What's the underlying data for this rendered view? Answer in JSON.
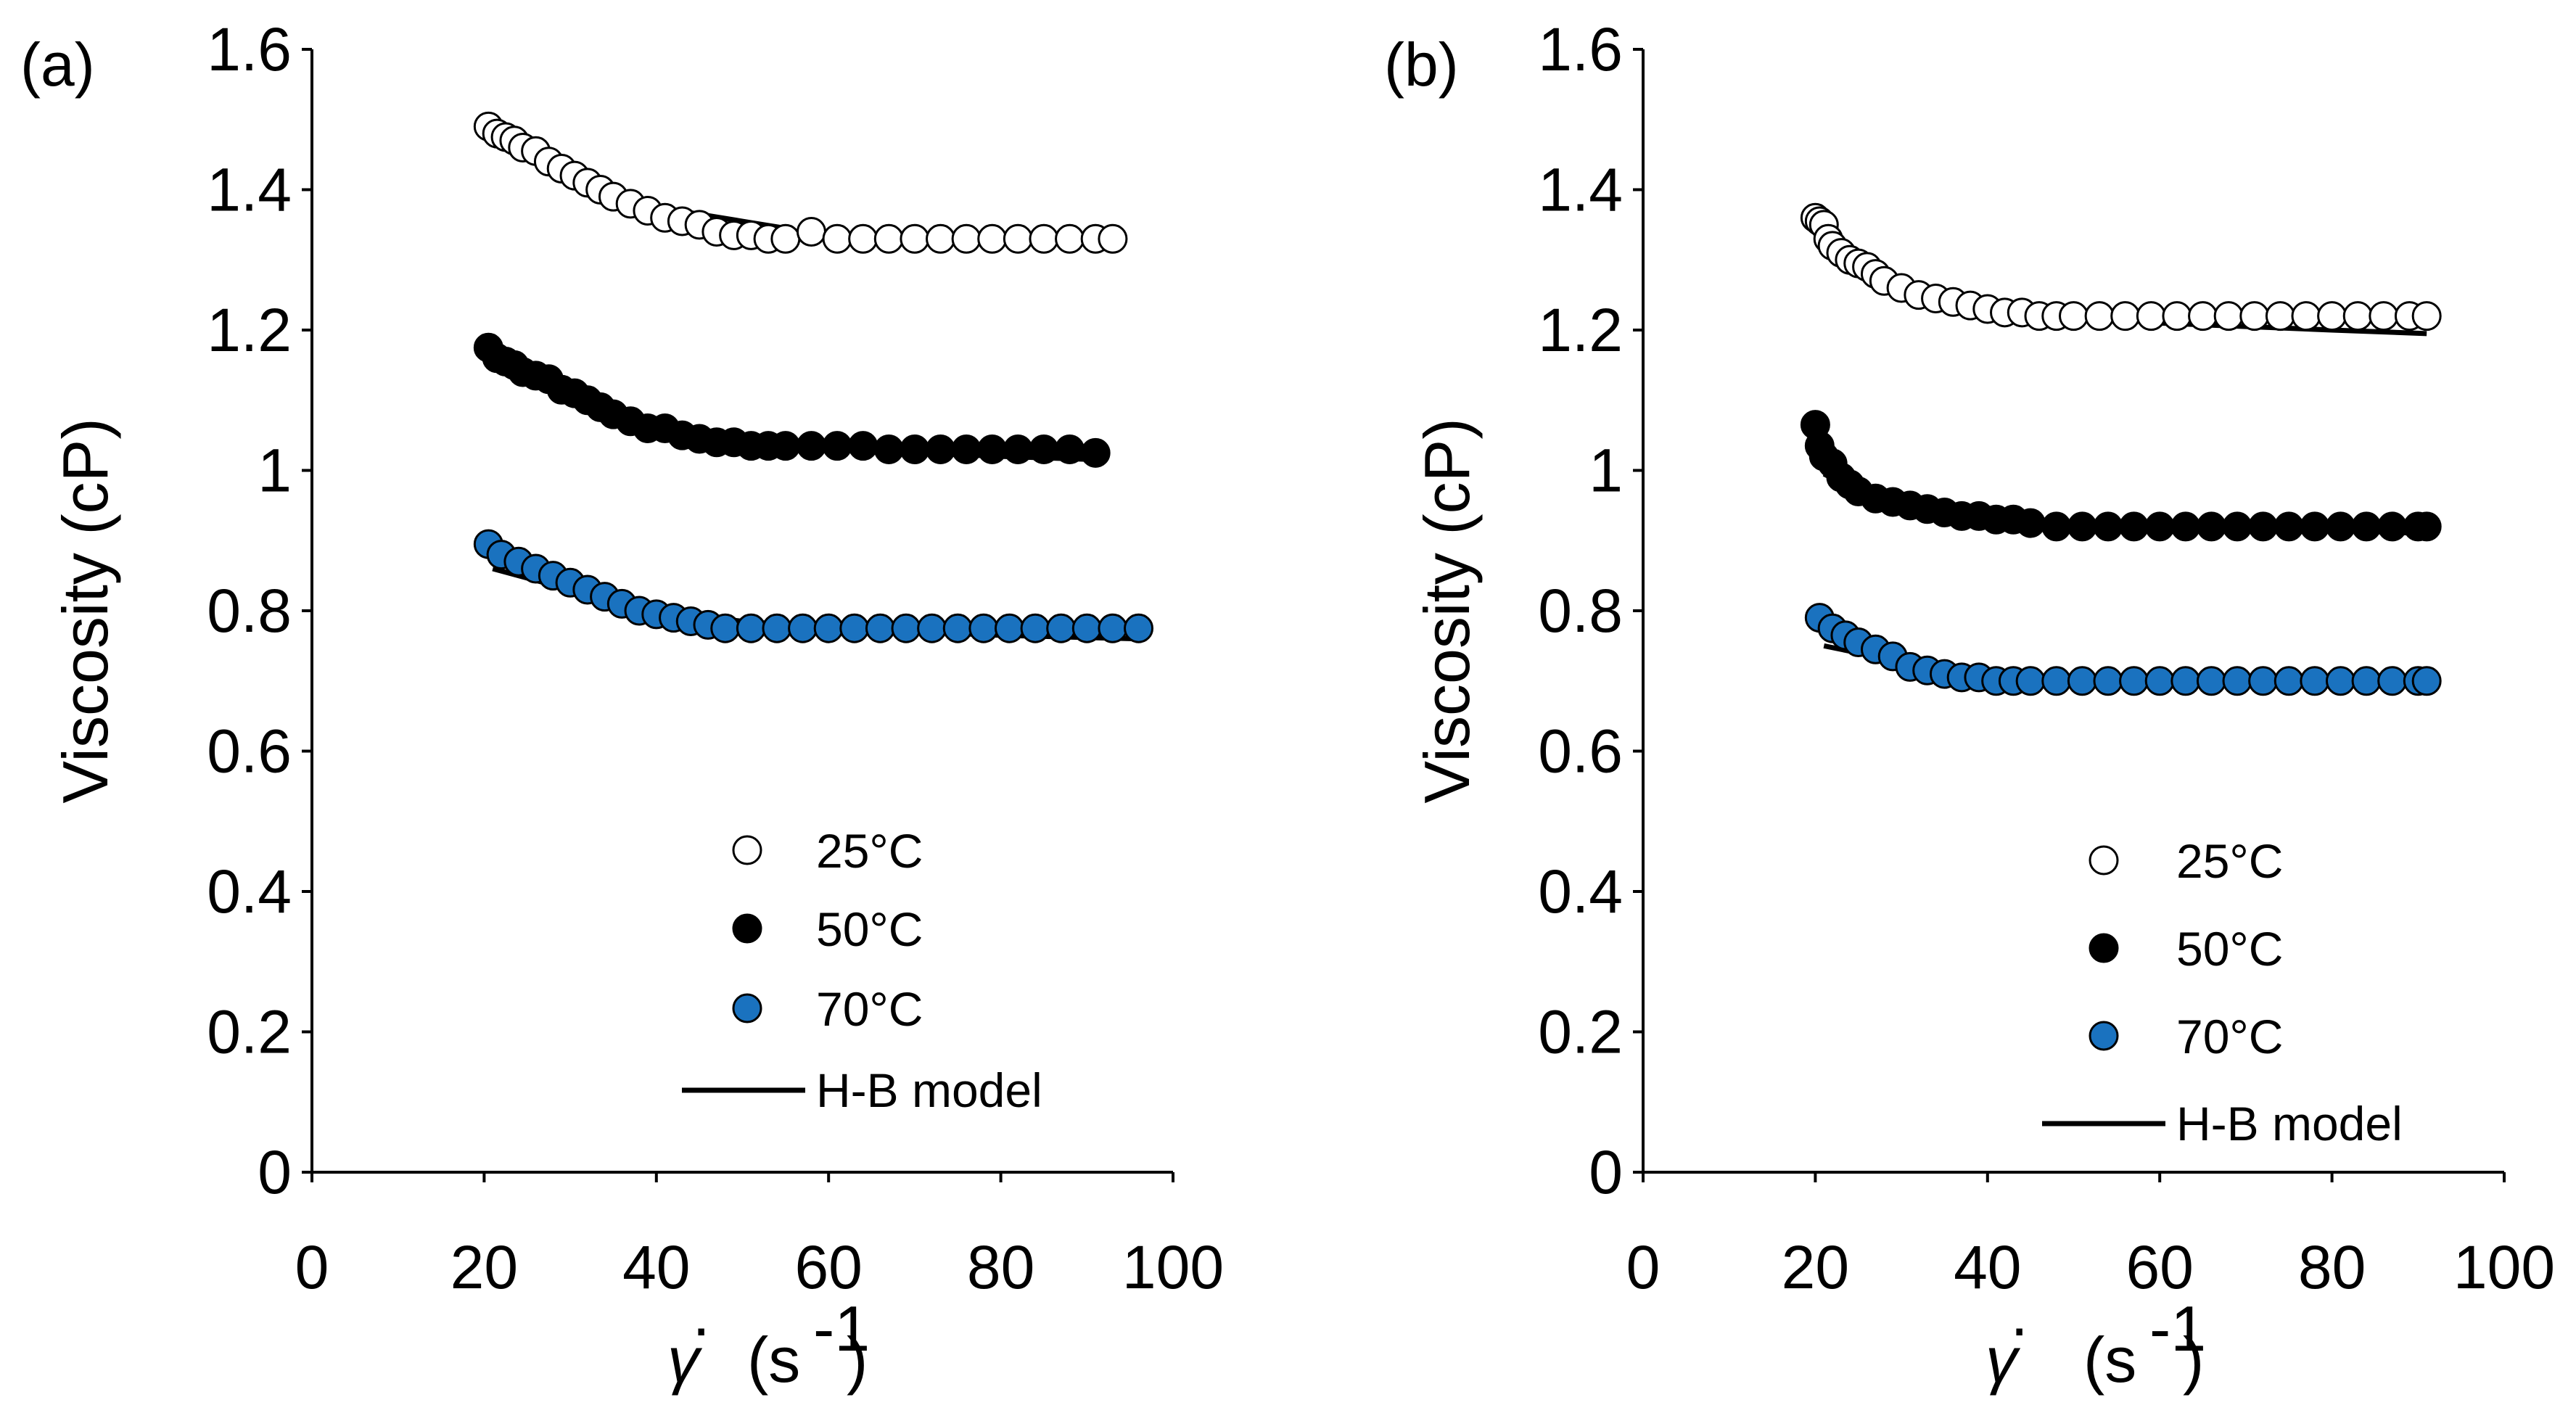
{
  "chart_data": [
    {
      "type": "scatter",
      "panel_label": "(a)",
      "ylabel": "Viscosity (cP)",
      "xlabel": {
        "symbol": "γ",
        "overdot": "·",
        "unit_open": "(s",
        "unit_exp": "-1",
        "unit_close": ")"
      },
      "xlim": [
        0,
        100
      ],
      "ylim": [
        0,
        1.6
      ],
      "xticks": [
        0,
        20,
        40,
        60,
        80,
        100
      ],
      "yticks": [
        0,
        0.2,
        0.4,
        0.6,
        0.8,
        1,
        1.2,
        1.4,
        1.6
      ],
      "ytick_labels": [
        "0",
        "0.2",
        "0.4",
        "0.6",
        "0.8",
        "1",
        "1.2",
        "1.4",
        "1.6"
      ],
      "legend": [
        {
          "label": "25°C",
          "marker": "circle",
          "fill": "#ffffff"
        },
        {
          "label": "50°C",
          "marker": "circle",
          "fill": "#000000"
        },
        {
          "label": "70°C",
          "marker": "circle",
          "fill": "#1a72bf"
        },
        {
          "label": "H-B model",
          "marker": "line",
          "fill": "#000000"
        }
      ],
      "series": [
        {
          "name": "25°C",
          "fill": "#ffffff",
          "x": [
            20.5,
            21.5,
            22.5,
            23.5,
            24.5,
            26,
            27.5,
            29,
            30.5,
            32,
            33.5,
            35,
            37,
            39,
            41,
            43,
            45,
            47,
            49,
            51,
            53,
            55,
            58,
            61,
            64,
            67,
            70,
            73,
            76,
            79,
            82,
            85,
            88,
            91,
            93
          ],
          "y": [
            1.49,
            1.48,
            1.475,
            1.47,
            1.46,
            1.455,
            1.44,
            1.43,
            1.42,
            1.41,
            1.4,
            1.39,
            1.38,
            1.37,
            1.36,
            1.355,
            1.35,
            1.34,
            1.335,
            1.335,
            1.33,
            1.33,
            1.34,
            1.33,
            1.33,
            1.33,
            1.33,
            1.33,
            1.33,
            1.33,
            1.33,
            1.33,
            1.33,
            1.33,
            1.33
          ]
        },
        {
          "name": "50°C",
          "fill": "#000000",
          "x": [
            20.5,
            21.5,
            22.5,
            23.5,
            24.5,
            26,
            27.5,
            29,
            30.5,
            32,
            33.5,
            35,
            37,
            39,
            41,
            43,
            45,
            47,
            49,
            51,
            53,
            55,
            58,
            61,
            64,
            67,
            70,
            73,
            76,
            79,
            82,
            85,
            88,
            91
          ],
          "y": [
            1.175,
            1.16,
            1.155,
            1.15,
            1.14,
            1.135,
            1.13,
            1.115,
            1.11,
            1.1,
            1.09,
            1.08,
            1.07,
            1.06,
            1.06,
            1.05,
            1.045,
            1.04,
            1.04,
            1.035,
            1.035,
            1.035,
            1.035,
            1.035,
            1.035,
            1.03,
            1.03,
            1.03,
            1.03,
            1.03,
            1.03,
            1.03,
            1.03,
            1.025
          ]
        },
        {
          "name": "70°C",
          "fill": "#1a72bf",
          "x": [
            20.5,
            22,
            24,
            26,
            28,
            30,
            32,
            34,
            36,
            38,
            40,
            42,
            44,
            46,
            48,
            51,
            54,
            57,
            60,
            63,
            66,
            69,
            72,
            75,
            78,
            81,
            84,
            87,
            90,
            93,
            96
          ],
          "y": [
            0.895,
            0.88,
            0.87,
            0.86,
            0.85,
            0.84,
            0.83,
            0.82,
            0.81,
            0.8,
            0.795,
            0.79,
            0.785,
            0.78,
            0.775,
            0.775,
            0.775,
            0.775,
            0.775,
            0.775,
            0.775,
            0.775,
            0.775,
            0.775,
            0.775,
            0.775,
            0.775,
            0.775,
            0.775,
            0.775,
            0.775
          ]
        }
      ],
      "model_lines": [
        {
          "name": "H-B model 25°C",
          "x": [
            21,
            25,
            30,
            35,
            40,
            45,
            50,
            55
          ],
          "y": [
            1.47,
            1.445,
            1.415,
            1.39,
            1.375,
            1.365,
            1.355,
            1.345
          ]
        },
        {
          "name": "H-B model 50°C",
          "x": [
            21,
            30,
            40,
            50,
            60,
            70,
            80,
            92
          ],
          "y": [
            1.155,
            1.105,
            1.065,
            1.04,
            1.03,
            1.025,
            1.02,
            1.015
          ]
        },
        {
          "name": "H-B model 70°C",
          "x": [
            21,
            30,
            40,
            50,
            60,
            70,
            80,
            96
          ],
          "y": [
            0.86,
            0.83,
            0.8,
            0.785,
            0.775,
            0.77,
            0.765,
            0.76
          ]
        }
      ]
    },
    {
      "type": "scatter",
      "panel_label": "(b)",
      "ylabel": "Viscosity (cP)",
      "xlabel": {
        "symbol": "γ",
        "overdot": "·",
        "unit_open": "(s",
        "unit_exp": "-1",
        "unit_close": ")"
      },
      "xlim": [
        0,
        100
      ],
      "ylim": [
        0,
        1.6
      ],
      "xticks": [
        0,
        20,
        40,
        60,
        80,
        100
      ],
      "yticks": [
        0,
        0.2,
        0.4,
        0.6,
        0.8,
        1,
        1.2,
        1.4,
        1.6
      ],
      "ytick_labels": [
        "0",
        "0.2",
        "0.4",
        "0.6",
        "0.8",
        "1",
        "1.2",
        "1.4",
        "1.6"
      ],
      "legend": [
        {
          "label": "25°C",
          "marker": "circle",
          "fill": "#ffffff"
        },
        {
          "label": "50°C",
          "marker": "circle",
          "fill": "#000000"
        },
        {
          "label": "70°C",
          "marker": "circle",
          "fill": "#1a72bf"
        },
        {
          "label": "H-B model",
          "marker": "line",
          "fill": "#000000"
        }
      ],
      "series": [
        {
          "name": "25°C",
          "fill": "#ffffff",
          "x": [
            20,
            20.5,
            21,
            21.5,
            22,
            23,
            24,
            25,
            26,
            27,
            28,
            30,
            32,
            34,
            36,
            38,
            40,
            42,
            44,
            46,
            48,
            50,
            53,
            56,
            59,
            62,
            65,
            68,
            71,
            74,
            77,
            80,
            83,
            86,
            89,
            91
          ],
          "y": [
            1.36,
            1.355,
            1.35,
            1.33,
            1.32,
            1.31,
            1.3,
            1.295,
            1.29,
            1.28,
            1.27,
            1.26,
            1.25,
            1.245,
            1.24,
            1.235,
            1.23,
            1.225,
            1.225,
            1.22,
            1.22,
            1.22,
            1.22,
            1.22,
            1.22,
            1.22,
            1.22,
            1.22,
            1.22,
            1.22,
            1.22,
            1.22,
            1.22,
            1.22,
            1.22,
            1.22
          ]
        },
        {
          "name": "50°C",
          "fill": "#000000",
          "x": [
            20,
            20.5,
            21,
            22,
            23,
            24,
            25,
            27,
            29,
            31,
            33,
            35,
            37,
            39,
            41,
            43,
            45,
            48,
            51,
            54,
            57,
            60,
            63,
            66,
            69,
            72,
            75,
            78,
            81,
            84,
            87,
            90,
            91
          ],
          "y": [
            1.065,
            1.035,
            1.02,
            1.01,
            0.99,
            0.98,
            0.97,
            0.96,
            0.955,
            0.95,
            0.945,
            0.94,
            0.935,
            0.935,
            0.93,
            0.93,
            0.925,
            0.92,
            0.92,
            0.92,
            0.92,
            0.92,
            0.92,
            0.92,
            0.92,
            0.92,
            0.92,
            0.92,
            0.92,
            0.92,
            0.92,
            0.92,
            0.92
          ]
        },
        {
          "name": "70°C",
          "fill": "#1a72bf",
          "x": [
            20.5,
            22,
            23.5,
            25,
            27,
            29,
            31,
            33,
            35,
            37,
            39,
            41,
            43,
            45,
            48,
            51,
            54,
            57,
            60,
            63,
            66,
            69,
            72,
            75,
            78,
            81,
            84,
            87,
            90,
            91
          ],
          "y": [
            0.79,
            0.775,
            0.765,
            0.755,
            0.745,
            0.735,
            0.72,
            0.715,
            0.71,
            0.705,
            0.705,
            0.7,
            0.7,
            0.7,
            0.7,
            0.7,
            0.7,
            0.7,
            0.7,
            0.7,
            0.7,
            0.7,
            0.7,
            0.7,
            0.7,
            0.7,
            0.7,
            0.7,
            0.7,
            0.7
          ]
        }
      ],
      "model_lines": [
        {
          "name": "H-B model 25°C",
          "x": [
            21,
            25,
            30,
            35,
            40,
            45,
            50,
            60,
            70,
            80,
            91
          ],
          "y": [
            1.33,
            1.29,
            1.265,
            1.25,
            1.24,
            1.23,
            1.22,
            1.21,
            1.205,
            1.2,
            1.195
          ]
        },
        {
          "name": "H-B model 50°C",
          "x": [
            21,
            25,
            30,
            35,
            40,
            45,
            50,
            60,
            70,
            80,
            91
          ],
          "y": [
            0.995,
            0.97,
            0.955,
            0.945,
            0.935,
            0.93,
            0.925,
            0.92,
            0.915,
            0.915,
            0.91
          ]
        },
        {
          "name": "H-B model 70°C",
          "x": [
            21,
            25,
            30,
            35,
            40,
            50,
            60,
            70,
            80,
            91
          ],
          "y": [
            0.75,
            0.74,
            0.725,
            0.715,
            0.71,
            0.705,
            0.7,
            0.7,
            0.7,
            0.7
          ]
        }
      ]
    }
  ]
}
